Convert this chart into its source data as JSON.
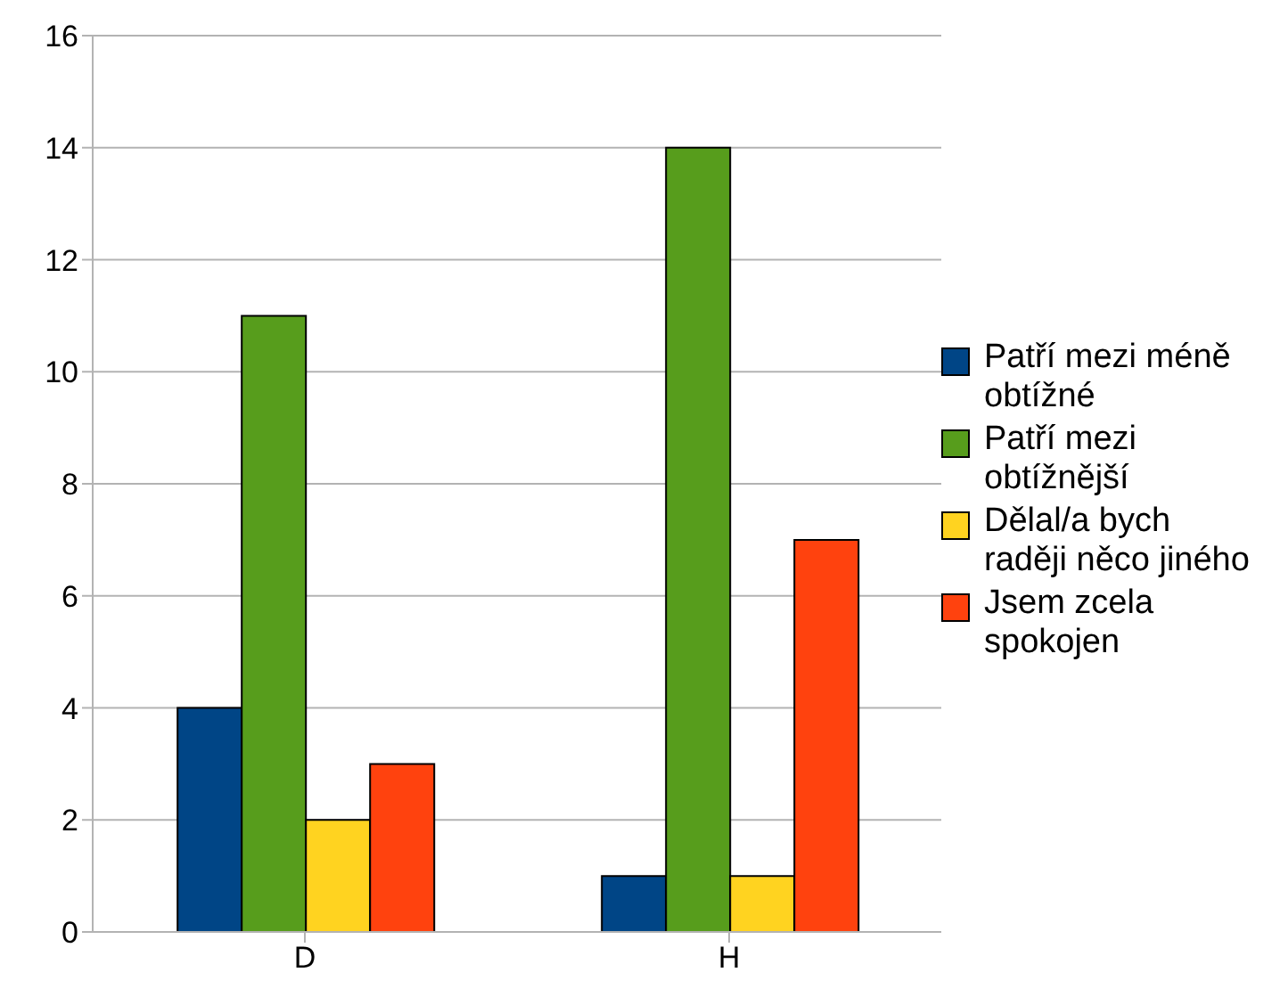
{
  "chart_data": {
    "type": "bar",
    "categories": [
      "D",
      "H"
    ],
    "series": [
      {
        "name": "Patří mezi méně obtížné",
        "color": "#004586",
        "values": [
          4,
          1
        ]
      },
      {
        "name": "Patří mezi obtížnější",
        "color": "#579d1c",
        "values": [
          11,
          14
        ]
      },
      {
        "name": "Dělal/a bych raději něco jiného",
        "color": "#ffd320",
        "values": [
          2,
          1
        ]
      },
      {
        "name": "Jsem zcela spokojen",
        "color": "#ff420e",
        "values": [
          3,
          7
        ]
      }
    ],
    "ylim": [
      0,
      16
    ],
    "yticks": [
      0,
      2,
      4,
      6,
      8,
      10,
      12,
      14,
      16
    ],
    "grid": "y",
    "legend": "right"
  }
}
